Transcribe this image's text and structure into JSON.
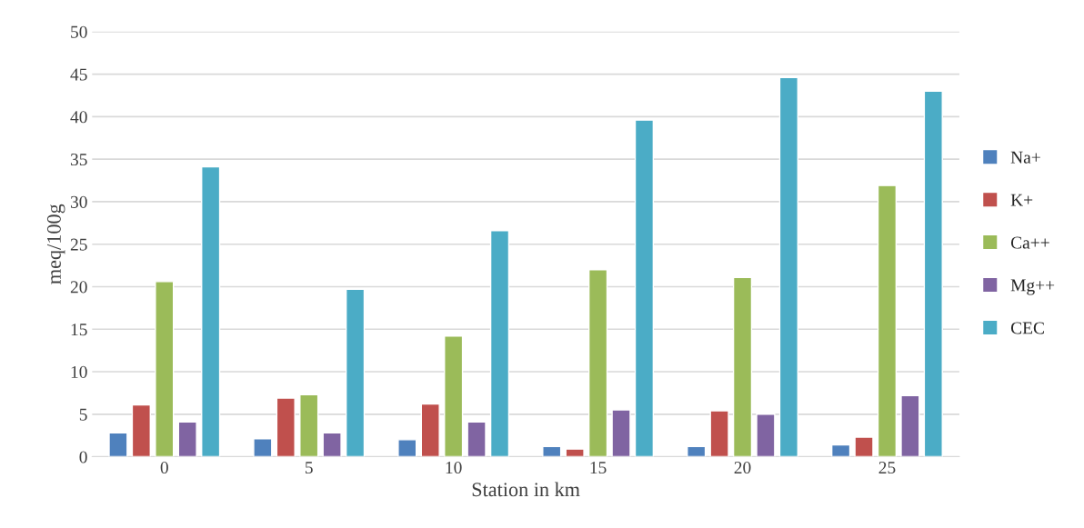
{
  "chart_data": {
    "type": "bar",
    "xlabel": "Station in km",
    "ylabel": "meq/100g",
    "categories": [
      "0",
      "5",
      "10",
      "15",
      "20",
      "25"
    ],
    "series": [
      {
        "name": "Na+",
        "color": "#4f81bd",
        "values": [
          2.8,
          2.1,
          2.0,
          1.2,
          1.2,
          1.4
        ]
      },
      {
        "name": "K+",
        "color": "#c0504d",
        "values": [
          6.1,
          6.9,
          6.2,
          0.9,
          5.4,
          2.3
        ]
      },
      {
        "name": "Ca++",
        "color": "#9bbb59",
        "values": [
          20.6,
          7.3,
          14.2,
          22.0,
          21.1,
          31.9
        ]
      },
      {
        "name": "Mg++",
        "color": "#8064a2",
        "values": [
          4.1,
          2.8,
          4.1,
          5.5,
          5.0,
          7.2
        ]
      },
      {
        "name": "CEC",
        "color": "#4bacc6",
        "values": [
          34.1,
          19.7,
          26.6,
          39.6,
          44.6,
          43.0
        ]
      }
    ],
    "ylim": [
      0,
      50
    ],
    "yticks": [
      0,
      5,
      10,
      15,
      20,
      25,
      30,
      35,
      40,
      45,
      50
    ],
    "grid": "y",
    "legend": "right"
  }
}
